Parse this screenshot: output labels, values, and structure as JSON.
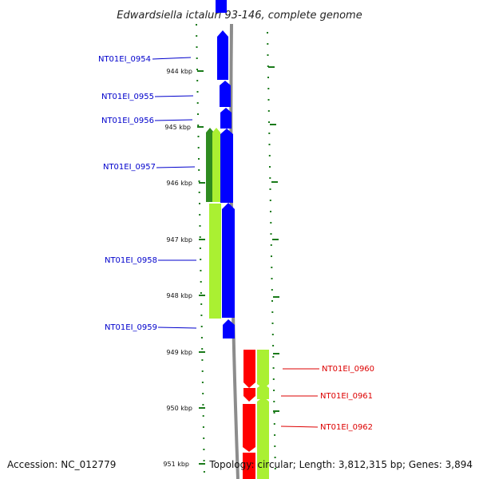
{
  "title": "Edwardsiella ictaluri 93-146, complete genome",
  "footer": {
    "accession": "Accession: NC_012779",
    "topology": "Topology: circular; Length: 3,812,315 bp; Genes: 3,894"
  },
  "ticks": [
    "944 kbp",
    "945 kbp",
    "946 kbp",
    "947 kbp",
    "948 kbp",
    "949 kbp",
    "950 kbp",
    "951 kbp"
  ],
  "genes": [
    {
      "name": "NT01EI_0954",
      "color": "#0000cc"
    },
    {
      "name": "NT01EI_0955",
      "color": "#0000cc"
    },
    {
      "name": "NT01EI_0956",
      "color": "#0000cc"
    },
    {
      "name": "NT01EI_0957",
      "color": "#0000cc"
    },
    {
      "name": "NT01EI_0958",
      "color": "#0000cc"
    },
    {
      "name": "NT01EI_0959",
      "color": "#0000cc"
    },
    {
      "name": "NT01EI_0960",
      "color": "#dd0000"
    },
    {
      "name": "NT01EI_0961",
      "color": "#dd0000"
    },
    {
      "name": "NT01EI_0962",
      "color": "#dd0000"
    }
  ],
  "colors": {
    "forward_cds": "#0000ff",
    "reverse_cds": "#ff0000",
    "gene_feature": "#aaf032",
    "gene_feature_dark": "#2e8b20",
    "tick": "#1a7a1a",
    "backbone": "#8c8c8c"
  }
}
